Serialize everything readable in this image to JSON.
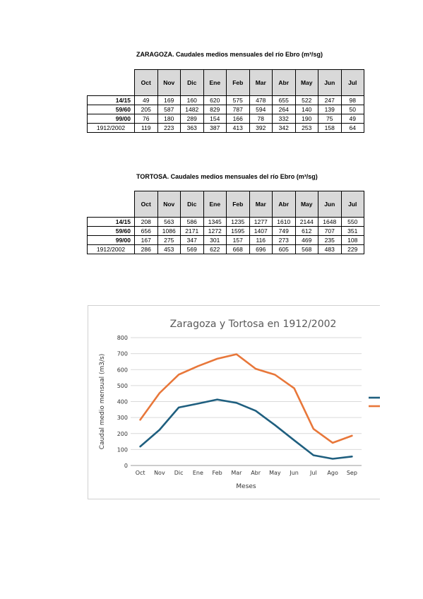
{
  "zaragoza": {
    "title": "ZARAGOZA. Caudales medios mensuales del río Ebro (m³/sg)",
    "months": [
      "Oct",
      "Nov",
      "Dic",
      "Ene",
      "Feb",
      "Mar",
      "Abr",
      "May",
      "Jun",
      "Jul"
    ],
    "rows": [
      {
        "label": "14/15",
        "values": [
          "49",
          "169",
          "160",
          "620",
          "575",
          "478",
          "655",
          "522",
          "247",
          "98"
        ]
      },
      {
        "label": "59/60",
        "values": [
          "205",
          "587",
          "1482",
          "829",
          "787",
          "594",
          "264",
          "140",
          "139",
          "50"
        ]
      },
      {
        "label": "99/00",
        "values": [
          "76",
          "180",
          "289",
          "154",
          "166",
          "78",
          "332",
          "190",
          "75",
          "49"
        ]
      },
      {
        "label": "1912/2002",
        "values": [
          "119",
          "223",
          "363",
          "387",
          "413",
          "392",
          "342",
          "253",
          "158",
          "64"
        ]
      }
    ]
  },
  "tortosa": {
    "title": "TORTOSA. Caudales medios mensuales del río Ebro (m³/sg)",
    "months": [
      "Oct",
      "Nov",
      "Dic",
      "Ene",
      "Feb",
      "Mar",
      "Abr",
      "May",
      "Jun",
      "Jul"
    ],
    "rows": [
      {
        "label": "14/15",
        "values": [
          "208",
          "563",
          "586",
          "1345",
          "1235",
          "1277",
          "1610",
          "2144",
          "1648",
          "550"
        ]
      },
      {
        "label": "59/60",
        "values": [
          "656",
          "1086",
          "2171",
          "1272",
          "1595",
          "1407",
          "749",
          "612",
          "707",
          "351"
        ]
      },
      {
        "label": "99/00",
        "values": [
          "167",
          "275",
          "347",
          "301",
          "157",
          "116",
          "273",
          "469",
          "235",
          "108"
        ]
      },
      {
        "label": "1912/2002",
        "values": [
          "286",
          "453",
          "569",
          "622",
          "668",
          "696",
          "605",
          "568",
          "483",
          "229"
        ]
      }
    ]
  },
  "chart_data": {
    "type": "line",
    "title": "Zaragoza y Tortosa en 1912/2002",
    "xlabel": "Meses",
    "ylabel": "Caudal medio mensual (m3/s)",
    "categories": [
      "Oct",
      "Nov",
      "Dic",
      "Ene",
      "Feb",
      "Mar",
      "Abr",
      "May",
      "Jun",
      "Jul",
      "Ago",
      "Sep"
    ],
    "ylim": [
      0,
      800
    ],
    "yticks": [
      "0",
      "100",
      "200",
      "300",
      "400",
      "500",
      "600",
      "700",
      "800"
    ],
    "grid": true,
    "legend": "right",
    "series": [
      {
        "color": "#1f5f7f",
        "values": [
          119,
          223,
          363,
          387,
          413,
          392,
          342,
          253,
          158,
          64,
          42,
          56
        ]
      },
      {
        "color": "#e8773a",
        "values": [
          286,
          453,
          569,
          622,
          668,
          696,
          605,
          568,
          483,
          229,
          142,
          186
        ]
      }
    ]
  }
}
